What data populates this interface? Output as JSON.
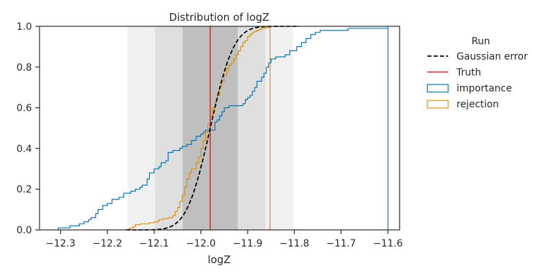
{
  "chart_data": {
    "type": "step",
    "title": "Distribution of logZ",
    "xlabel": "logZ",
    "ylabel": "",
    "xlim": [
      -12.345,
      -11.575
    ],
    "ylim": [
      0,
      1.0
    ],
    "xticks": [
      -12.3,
      -12.2,
      -12.1,
      -12.0,
      -11.9,
      -11.8,
      -11.7,
      -11.6
    ],
    "yticks": [
      0.0,
      0.2,
      0.4,
      0.6,
      0.8,
      1.0
    ],
    "xtick_labels": [
      "−12.3",
      "−12.2",
      "−12.1",
      "−12.0",
      "−11.9",
      "−11.8",
      "−11.7",
      "−11.6"
    ],
    "ytick_labels": [
      "0.0",
      "0.2",
      "0.4",
      "0.6",
      "0.8",
      "1.0"
    ],
    "shaded_bands": [
      {
        "from": -12.157,
        "to": -11.803,
        "color": "#f0f0f0"
      },
      {
        "from": -12.098,
        "to": -11.862,
        "color": "#dfdfdf"
      },
      {
        "from": -12.039,
        "to": -11.921,
        "color": "#bfbfbf"
      }
    ],
    "truth": -11.98,
    "legend": {
      "title": "Run",
      "placement": "right",
      "entries": [
        {
          "label": "Gaussian error",
          "style": "dashed",
          "color": "#000000"
        },
        {
          "label": "Truth",
          "style": "line",
          "color": "#d62728"
        },
        {
          "label": "importance",
          "style": "box",
          "color": "#0173b2"
        },
        {
          "label": "rejection",
          "style": "box",
          "color": "#de8f05"
        }
      ]
    },
    "series": [
      {
        "name": "Gaussian error",
        "kind": "normal_cdf",
        "mean": -11.98,
        "sd": 0.0395,
        "x_from": -12.16,
        "x_to": -11.79,
        "color": "#000000"
      },
      {
        "name": "importance",
        "kind": "step",
        "color": "#0173b2",
        "x": [
          -12.305,
          -12.28,
          -12.26,
          -12.25,
          -12.24,
          -12.235,
          -12.225,
          -12.22,
          -12.21,
          -12.2,
          -12.19,
          -12.175,
          -12.165,
          -12.15,
          -12.14,
          -12.13,
          -12.125,
          -12.115,
          -12.11,
          -12.1,
          -12.09,
          -12.085,
          -12.08,
          -12.075,
          -12.07,
          -12.06,
          -12.05,
          -12.045,
          -12.04,
          -12.035,
          -12.03,
          -12.02,
          -12.01,
          -12.0,
          -11.995,
          -11.99,
          -11.985,
          -11.98,
          -11.97,
          -11.965,
          -11.96,
          -11.955,
          -11.95,
          -11.94,
          -11.925,
          -11.91,
          -11.905,
          -11.9,
          -11.895,
          -11.89,
          -11.885,
          -11.88,
          -11.87,
          -11.865,
          -11.86,
          -11.855,
          -11.85,
          -11.84,
          -11.83,
          -11.82,
          -11.81,
          -11.795,
          -11.785,
          -11.775,
          -11.765,
          -11.755,
          -11.745,
          -11.715,
          -11.685,
          -11.61,
          -11.6
        ],
        "y": [
          0.01,
          0.02,
          0.03,
          0.04,
          0.05,
          0.06,
          0.08,
          0.1,
          0.12,
          0.13,
          0.15,
          0.16,
          0.18,
          0.19,
          0.2,
          0.21,
          0.22,
          0.25,
          0.28,
          0.3,
          0.31,
          0.33,
          0.33,
          0.34,
          0.38,
          0.39,
          0.39,
          0.4,
          0.41,
          0.41,
          0.42,
          0.44,
          0.46,
          0.47,
          0.48,
          0.49,
          0.49,
          0.49,
          0.53,
          0.54,
          0.56,
          0.58,
          0.6,
          0.61,
          0.61,
          0.62,
          0.64,
          0.65,
          0.66,
          0.68,
          0.7,
          0.73,
          0.75,
          0.77,
          0.8,
          0.82,
          0.84,
          0.85,
          0.85,
          0.86,
          0.88,
          0.9,
          0.92,
          0.94,
          0.96,
          0.97,
          0.98,
          0.98,
          0.99,
          0.99,
          1.0
        ]
      },
      {
        "name": "rejection",
        "kind": "step",
        "color": "#de8f05",
        "x": [
          -12.155,
          -12.15,
          -12.145,
          -12.14,
          -12.13,
          -12.12,
          -12.11,
          -12.1,
          -12.09,
          -12.08,
          -12.07,
          -12.06,
          -12.055,
          -12.05,
          -12.045,
          -12.04,
          -12.035,
          -12.03,
          -12.025,
          -12.02,
          -12.015,
          -12.01,
          -12.005,
          -12.0,
          -11.995,
          -11.99,
          -11.985,
          -11.98,
          -11.975,
          -11.97,
          -11.965,
          -11.96,
          -11.955,
          -11.95,
          -11.945,
          -11.94,
          -11.935,
          -11.93,
          -11.925,
          -11.92,
          -11.915,
          -11.91,
          -11.905,
          -11.9,
          -11.895,
          -11.89,
          -11.885,
          -11.88,
          -11.875,
          -11.87,
          -11.865,
          -11.86,
          -11.852
        ],
        "y": [
          0.005,
          0.01,
          0.015,
          0.025,
          0.03,
          0.03,
          0.035,
          0.04,
          0.05,
          0.055,
          0.06,
          0.07,
          0.09,
          0.11,
          0.14,
          0.17,
          0.21,
          0.25,
          0.28,
          0.3,
          0.3,
          0.33,
          0.36,
          0.4,
          0.44,
          0.48,
          0.52,
          0.56,
          0.6,
          0.63,
          0.66,
          0.7,
          0.73,
          0.76,
          0.79,
          0.81,
          0.82,
          0.84,
          0.86,
          0.88,
          0.9,
          0.92,
          0.93,
          0.95,
          0.96,
          0.97,
          0.975,
          0.98,
          0.985,
          0.99,
          0.99,
          0.995,
          1.0
        ]
      }
    ]
  }
}
